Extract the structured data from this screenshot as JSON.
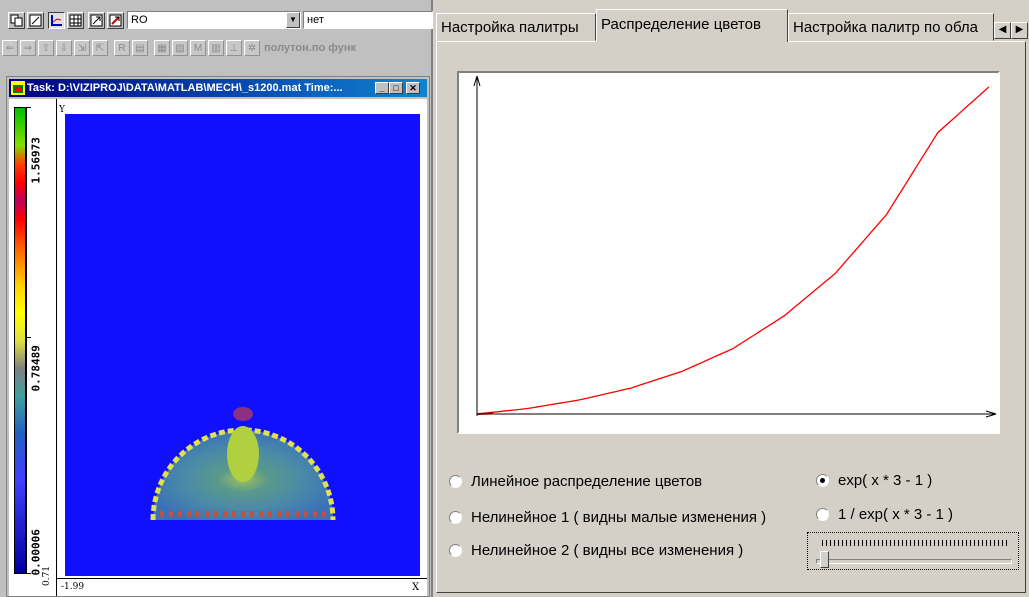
{
  "toolbar": {
    "variable_select": "RO",
    "mode_select": "нет",
    "halftone_label": "полутон.по функ"
  },
  "task_window": {
    "title": "Task: D:\\VIZIPROJ\\DATA\\MATLAB\\MECH\\_s1200.mat Time:...",
    "colorbar": {
      "max_label": "1.56973",
      "mid_label": "0.78489",
      "min_label": "0.00006",
      "y_min_label": "0.71"
    },
    "y_axis_label": "Y",
    "x_axis_label": "X",
    "x_min_label": "-1.99"
  },
  "tabs": [
    {
      "label": "Настройка палитры",
      "active": false
    },
    {
      "label": "Распределение цветов",
      "active": true
    },
    {
      "label": "Настройка палитр по обла",
      "active": false
    }
  ],
  "chart_data": {
    "type": "line",
    "series": [
      {
        "x": [
          0,
          0.1,
          0.2,
          0.3,
          0.4,
          0.5,
          0.6,
          0.7,
          0.8,
          0.9,
          1.0
        ],
        "values": [
          0,
          0.017,
          0.043,
          0.079,
          0.13,
          0.2,
          0.3,
          0.43,
          0.61,
          0.86,
          1.0
        ]
      }
    ],
    "xlim": [
      0,
      1
    ],
    "ylim": [
      0,
      1.03
    ],
    "grid": false,
    "line_color": "#ff0000"
  },
  "options": {
    "linear": {
      "label": "Линейное распределение цветов",
      "selected": false
    },
    "nonlinear1": {
      "label": "Нелинейное 1 ( видны малые изменения )",
      "selected": false
    },
    "nonlinear2": {
      "label": "Нелинейное 2 ( видны все изменения )",
      "selected": false
    },
    "exp": {
      "label": "exp( x * 3 - 1 )",
      "selected": true
    },
    "inv_exp": {
      "label": "1 / exp( x * 3 - 1 )",
      "selected": false
    }
  },
  "slider": {
    "value": 0
  }
}
